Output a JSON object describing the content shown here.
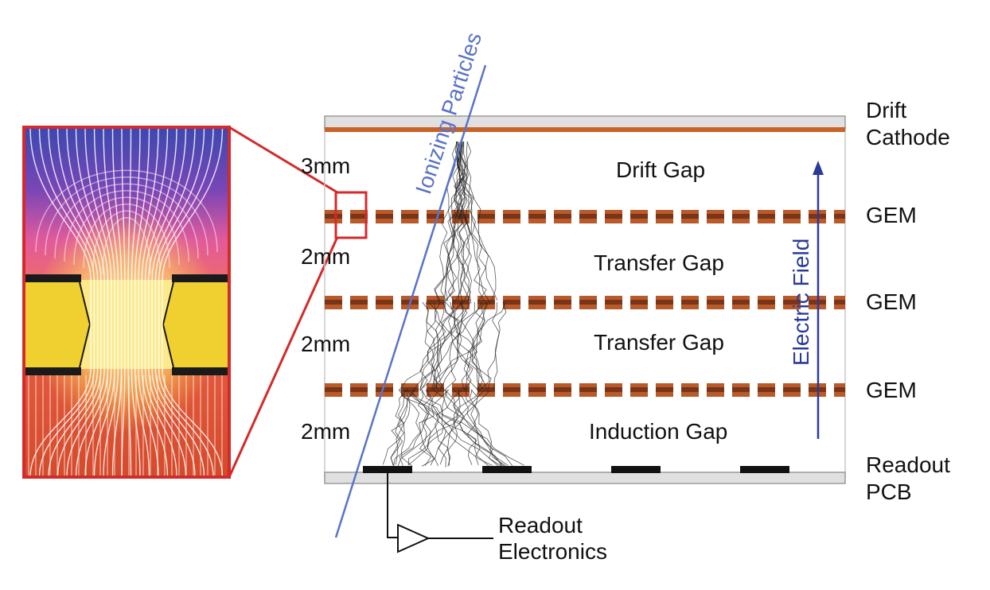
{
  "labels": {
    "drift_cathode": [
      "Drift",
      "Cathode"
    ],
    "gem_1": "GEM",
    "gem_2": "GEM",
    "gem_3": "GEM",
    "readout_pcb": [
      "Readout",
      "PCB"
    ],
    "readout_electronics": [
      "Readout",
      "Electronics"
    ],
    "ionizing_particles": "Ionizing Particles",
    "electric_field": "Electric Field"
  },
  "gaps": [
    {
      "name": "Drift Gap",
      "thickness": "3mm"
    },
    {
      "name": "Transfer Gap",
      "thickness": "2mm"
    },
    {
      "name": "Transfer Gap",
      "thickness": "2mm"
    },
    {
      "name": "Induction Gap",
      "thickness": "2mm"
    }
  ],
  "colors": {
    "cathode": "#c8642a",
    "gem_copper": "#b85a2a",
    "gem_core": "#7a3418",
    "plate": "#e0e0e0",
    "particle_track": "#5a73c8",
    "field_arrow": "#2a3a9a",
    "zoom_frame": "#d42a2a",
    "kapton": "#f0d030",
    "pad": "#111111"
  }
}
